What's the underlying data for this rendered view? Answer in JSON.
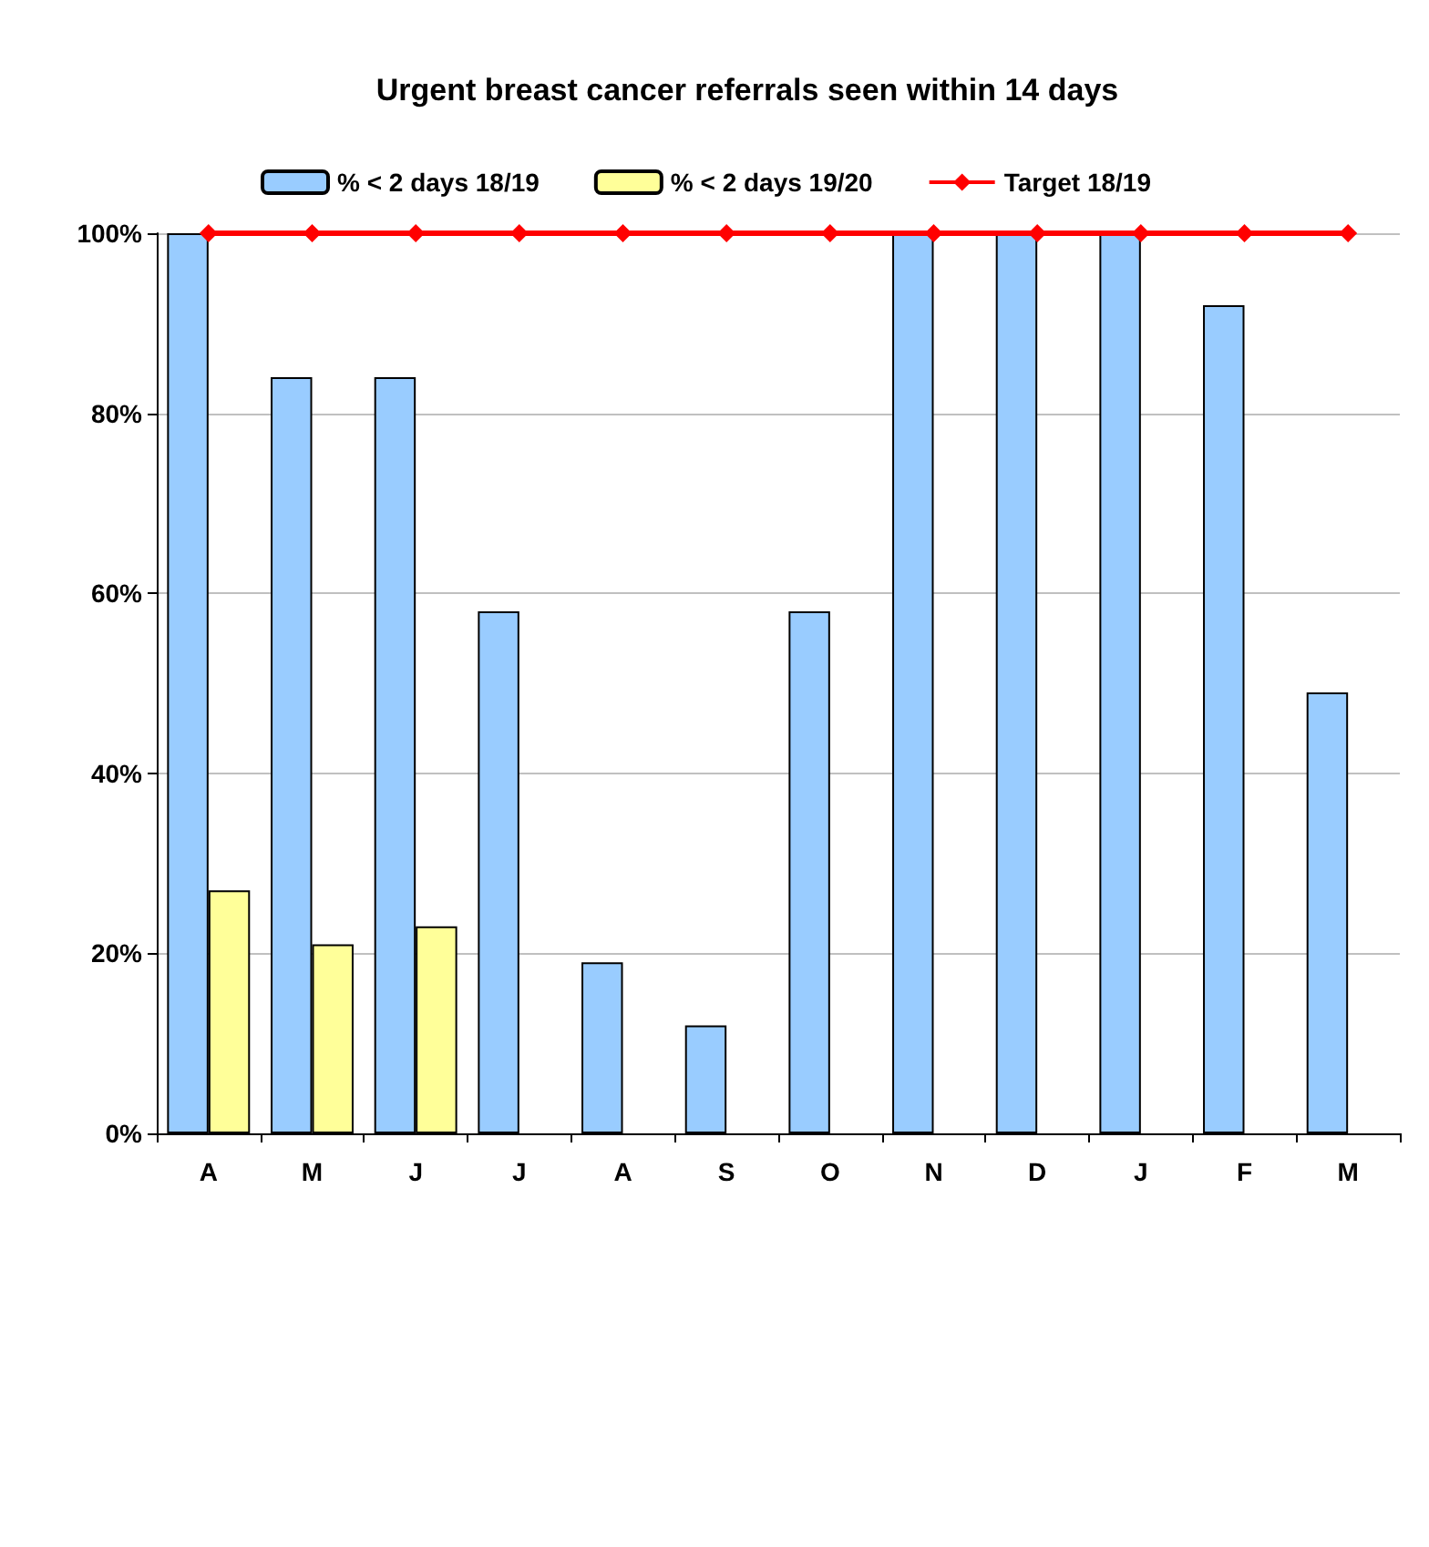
{
  "chart_data": {
    "type": "bar",
    "title": "Urgent breast cancer referrals seen within 14 days",
    "categories": [
      "A",
      "M",
      "J",
      "J",
      "A",
      "S",
      "O",
      "N",
      "D",
      "J",
      "F",
      "M"
    ],
    "series": [
      {
        "name": "% < 2 days 18/19",
        "color": "#99ccff",
        "values": [
          100,
          84,
          84,
          58,
          19,
          12,
          58,
          100,
          100,
          100,
          92,
          49
        ]
      },
      {
        "name": "% < 2 days 19/20",
        "color": "#ffff99",
        "values": [
          27,
          21,
          23,
          null,
          null,
          null,
          null,
          null,
          null,
          null,
          null,
          null
        ]
      },
      {
        "name": "Target 18/19",
        "type": "line",
        "color": "#ff0000",
        "marker": "diamond",
        "values": [
          100,
          100,
          100,
          100,
          100,
          100,
          100,
          100,
          100,
          100,
          100,
          100
        ]
      }
    ],
    "ylim": [
      0,
      100
    ],
    "yticks": [
      {
        "value": 0,
        "label": "0%"
      },
      {
        "value": 20,
        "label": "20%"
      },
      {
        "value": 40,
        "label": "40%"
      },
      {
        "value": 60,
        "label": "60%"
      },
      {
        "value": 80,
        "label": "80%"
      },
      {
        "value": 100,
        "label": "100%"
      }
    ],
    "grid": "y",
    "legend": "top"
  }
}
